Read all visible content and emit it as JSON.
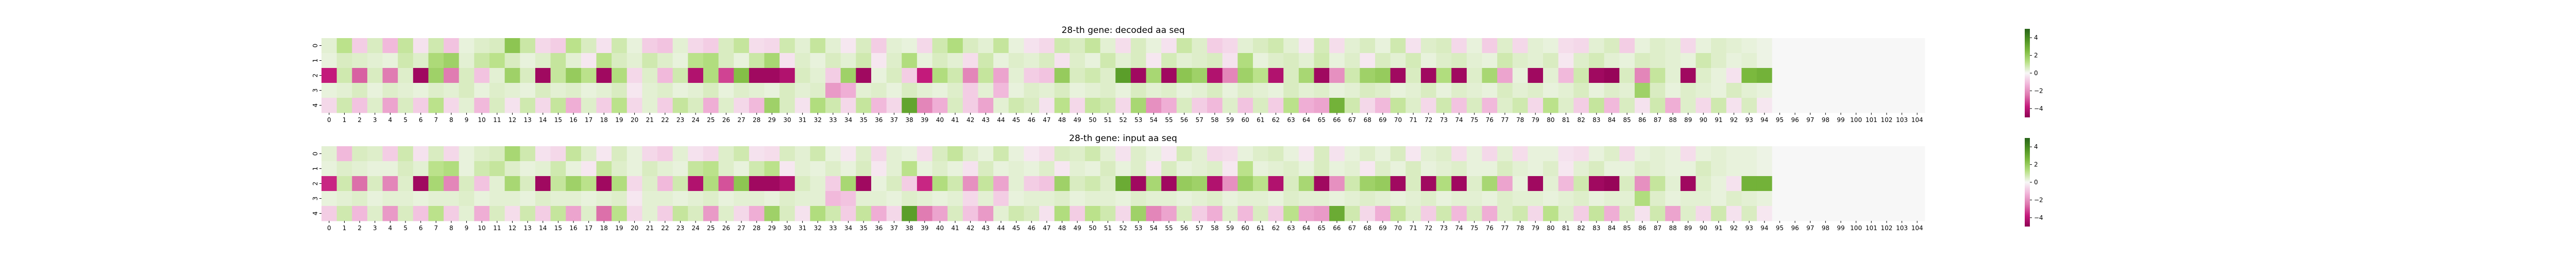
{
  "chart_data": [
    {
      "type": "heatmap",
      "title": "28-th gene: decoded aa seq",
      "xlabel": "",
      "ylabel": "",
      "x_categories": [
        "0",
        "1",
        "2",
        "3",
        "4",
        "5",
        "6",
        "7",
        "8",
        "9",
        "10",
        "11",
        "12",
        "13",
        "14",
        "15",
        "16",
        "17",
        "18",
        "19",
        "20",
        "21",
        "22",
        "23",
        "24",
        "25",
        "26",
        "27",
        "28",
        "29",
        "30",
        "31",
        "32",
        "33",
        "34",
        "35",
        "36",
        "37",
        "38",
        "39",
        "40",
        "41",
        "42",
        "43",
        "44",
        "45",
        "46",
        "47",
        "48",
        "49",
        "50",
        "51",
        "52",
        "53",
        "54",
        "55",
        "56",
        "57",
        "58",
        "59",
        "60",
        "61",
        "62",
        "63",
        "64",
        "65",
        "66",
        "67",
        "68",
        "69",
        "70",
        "71",
        "72",
        "73",
        "74",
        "75",
        "76",
        "77",
        "78",
        "79",
        "80",
        "81",
        "82",
        "83",
        "84",
        "85",
        "86",
        "87",
        "88",
        "89",
        "90",
        "91",
        "92",
        "93",
        "94",
        "95",
        "96",
        "97",
        "98",
        "99",
        "100",
        "101",
        "102",
        "103",
        "104"
      ],
      "y_categories": [
        "0",
        "1",
        "2",
        "3",
        "4"
      ],
      "colormap": "PiYG",
      "colorbar_ticks": [
        "4",
        "2",
        "0",
        "−2",
        "−4"
      ],
      "zlim": [
        -5,
        5
      ],
      "values": [
        [
          0.4,
          1.2,
          -0.8,
          0.6,
          -1.2,
          1.0,
          -0.4,
          0.8,
          -1.0,
          0.3,
          0.5,
          0.6,
          2.2,
          0.9,
          -0.6,
          -0.8,
          1.2,
          0.6,
          -0.4,
          0.8,
          0.3,
          -0.8,
          -1.0,
          0.4,
          -0.6,
          -0.8,
          0.6,
          1.0,
          -0.5,
          -0.6,
          0.8,
          0.4,
          1.0,
          0.4,
          -0.3,
          0.6,
          -0.8,
          0.4,
          0.3,
          -0.6,
          0.8,
          1.4,
          0.6,
          0.4,
          1.0,
          0.3,
          -0.4,
          -0.6,
          0.8,
          0.6,
          1.0,
          0.4,
          -0.5,
          0.6,
          0.3,
          -0.4,
          0.9,
          0.5,
          -0.8,
          -0.6,
          0.4,
          0.6,
          0.8,
          0.4,
          -0.3,
          0.7,
          -0.5,
          0.4,
          0.6,
          0.3,
          0.8,
          -0.4,
          0.5,
          0.6,
          -0.6,
          0.3,
          -0.8,
          0.5,
          -0.6,
          0.4,
          0.3,
          -0.5,
          -0.6,
          0.4,
          0.6,
          -0.8,
          0.3,
          0.5,
          0.4,
          -0.6,
          0.3,
          0.5,
          0.4,
          0.3,
          0.2,
          0,
          0,
          0,
          0,
          0,
          0,
          0,
          0,
          0,
          0
        ],
        [
          0.3,
          0.6,
          0.5,
          0.4,
          0.3,
          0.8,
          0.5,
          1.5,
          1.8,
          0.4,
          0.9,
          1.2,
          0.6,
          0.3,
          0.5,
          1.0,
          0.4,
          -0.3,
          1.2,
          0.6,
          0.4,
          0.8,
          0.5,
          0.3,
          1.2,
          1.4,
          0.6,
          0.3,
          0.9,
          1.6,
          -0.4,
          0.5,
          0.3,
          0.6,
          0.4,
          0.8,
          -0.3,
          0.5,
          1.4,
          0.3,
          0.6,
          0.4,
          -0.5,
          0.8,
          0.3,
          0.5,
          0.4,
          0.6,
          -0.4,
          0.5,
          0.3,
          0.8,
          0.4,
          0.6,
          -0.3,
          0.7,
          0.4,
          0.5,
          0.6,
          -0.4,
          1.4,
          0.3,
          0.5,
          0.6,
          0.4,
          0.8,
          0.3,
          0.5,
          -0.3,
          0.6,
          0.4,
          0.7,
          0.3,
          0.5,
          0.6,
          0.4,
          0.3,
          0.8,
          0.5,
          0.4,
          0.6,
          -0.3,
          0.5,
          0.7,
          0.4,
          0.3,
          0.6,
          0.5,
          0.4,
          0.3,
          0.8,
          0.5,
          0.3,
          0.4,
          0.2,
          0,
          0,
          0,
          0,
          0,
          0,
          0,
          0,
          0,
          0
        ],
        [
          -3.8,
          0.8,
          -2.8,
          0.6,
          -2.4,
          0.5,
          -4.6,
          1.8,
          -2.4,
          0.6,
          -1.0,
          0.4,
          1.8,
          0.6,
          -4.6,
          1.0,
          2.0,
          1.2,
          -4.6,
          1.4,
          -0.6,
          0.5,
          -1.2,
          0.8,
          -4.2,
          1.4,
          -3.2,
          2.4,
          -4.6,
          -4.6,
          -4.2,
          0.6,
          0.4,
          -0.8,
          1.8,
          -4.6,
          0.3,
          0.6,
          -0.8,
          -3.8,
          1.4,
          0.8,
          -2.2,
          1.0,
          -1.6,
          0.4,
          -0.8,
          -1.0,
          2.0,
          0.6,
          0.8,
          0.5,
          3.4,
          -4.6,
          1.6,
          -4.6,
          2.2,
          1.8,
          -4.2,
          -2.2,
          1.8,
          1.2,
          -4.2,
          0.6,
          1.6,
          -4.6,
          -2.0,
          0.8,
          1.8,
          2.0,
          -4.6,
          0.6,
          -4.6,
          1.4,
          -4.6,
          0.5,
          1.6,
          -1.6,
          0.3,
          -4.6,
          0.4,
          -1.2,
          0.8,
          -4.6,
          -4.8,
          0.6,
          -2.2,
          1.0,
          0.4,
          -4.6,
          0.5,
          0.3,
          -0.4,
          2.6,
          2.8,
          0,
          0,
          0,
          0,
          0,
          0,
          0,
          0,
          0,
          0
        ],
        [
          0.3,
          0.4,
          0.6,
          0.3,
          0.5,
          0.4,
          0.3,
          0.5,
          0.4,
          0.6,
          0.3,
          0.5,
          0.4,
          0.3,
          0.6,
          0.4,
          0.5,
          0.3,
          0.4,
          0.6,
          -0.3,
          0.4,
          0.5,
          0.3,
          0.4,
          0.6,
          0.3,
          0.5,
          0.4,
          0.3,
          0.6,
          0.4,
          0.5,
          -1.8,
          -1.4,
          0.4,
          0.5,
          0.3,
          0.6,
          0.4,
          0.3,
          0.5,
          -0.8,
          0.4,
          -1.2,
          0.3,
          0.5,
          0.4,
          0.6,
          0.3,
          0.4,
          0.5,
          0.3,
          0.6,
          0.4,
          0.5,
          0.3,
          0.4,
          0.6,
          0.3,
          0.5,
          0.4,
          0.3,
          0.6,
          0.4,
          0.5,
          0.3,
          0.4,
          0.6,
          0.5,
          0.3,
          0.4,
          0.6,
          0.3,
          0.5,
          0.4,
          0.3,
          0.6,
          0.4,
          0.5,
          0.3,
          0.4,
          0.6,
          0.3,
          0.5,
          0.4,
          1.8,
          0.6,
          0.3,
          0.5,
          0.4,
          0.3,
          0.6,
          0.4,
          0.3,
          0,
          0,
          0,
          0,
          0,
          0,
          0,
          0,
          0,
          0
        ],
        [
          -0.6,
          0.8,
          -1.0,
          0.5,
          -1.6,
          0.6,
          -0.8,
          1.2,
          -0.6,
          0.4,
          -1.2,
          0.6,
          -0.4,
          0.8,
          -0.6,
          1.0,
          -1.4,
          0.5,
          -0.8,
          1.2,
          -0.6,
          0.4,
          -0.8,
          1.0,
          0.6,
          -1.4,
          0.5,
          -0.6,
          -1.2,
          1.8,
          0.6,
          -0.4,
          1.4,
          0.8,
          -0.6,
          1.0,
          -1.2,
          -0.6,
          3.2,
          -2.2,
          -1.4,
          0.6,
          -0.8,
          -1.6,
          0.4,
          0.8,
          0.6,
          -0.4,
          1.2,
          -0.6,
          1.0,
          0.8,
          -0.6,
          1.6,
          -2.0,
          -1.4,
          0.6,
          -0.8,
          -1.2,
          0.5,
          -1.0,
          0.6,
          -0.8,
          1.2,
          -1.4,
          -1.6,
          2.8,
          0.8,
          -0.6,
          -1.2,
          1.0,
          0.5,
          -0.6,
          0.8,
          -1.0,
          0.6,
          -1.2,
          0.5,
          0.8,
          -0.6,
          1.2,
          0.5,
          -0.8,
          1.0,
          -1.2,
          0.6,
          -0.4,
          0.8,
          -1.4,
          0.5,
          -0.6,
          0.8,
          -0.4,
          0.6,
          -0.3,
          0,
          0,
          0,
          0,
          0,
          0,
          0,
          0,
          0,
          0
        ]
      ]
    },
    {
      "type": "heatmap",
      "title": "28-th gene: input aa seq",
      "xlabel": "",
      "ylabel": "",
      "x_categories": [
        "0",
        "1",
        "2",
        "3",
        "4",
        "5",
        "6",
        "7",
        "8",
        "9",
        "10",
        "11",
        "12",
        "13",
        "14",
        "15",
        "16",
        "17",
        "18",
        "19",
        "20",
        "21",
        "22",
        "23",
        "24",
        "25",
        "26",
        "27",
        "28",
        "29",
        "30",
        "31",
        "32",
        "33",
        "34",
        "35",
        "36",
        "37",
        "38",
        "39",
        "40",
        "41",
        "42",
        "43",
        "44",
        "45",
        "46",
        "47",
        "48",
        "49",
        "50",
        "51",
        "52",
        "53",
        "54",
        "55",
        "56",
        "57",
        "58",
        "59",
        "60",
        "61",
        "62",
        "63",
        "64",
        "65",
        "66",
        "67",
        "68",
        "69",
        "70",
        "71",
        "72",
        "73",
        "74",
        "75",
        "76",
        "77",
        "78",
        "79",
        "80",
        "81",
        "82",
        "83",
        "84",
        "85",
        "86",
        "87",
        "88",
        "89",
        "90",
        "91",
        "92",
        "93",
        "94",
        "95",
        "96",
        "97",
        "98",
        "99",
        "100",
        "101",
        "102",
        "103",
        "104"
      ],
      "y_categories": [
        "0",
        "1",
        "2",
        "3",
        "4"
      ],
      "colormap": "PiYG",
      "colorbar_ticks": [
        "4",
        "2",
        "0",
        "−2",
        "−4"
      ],
      "zlim": [
        -5,
        5
      ],
      "values": [
        [
          0.4,
          -1.2,
          0.6,
          0.5,
          -0.8,
          0.8,
          -0.4,
          0.6,
          -0.6,
          0.3,
          0.5,
          0.6,
          1.6,
          0.8,
          -0.4,
          -0.6,
          1.0,
          0.5,
          -0.3,
          0.6,
          0.3,
          -0.6,
          -0.8,
          0.4,
          -0.4,
          -0.6,
          0.5,
          0.8,
          -0.4,
          -0.5,
          0.6,
          0.4,
          0.8,
          0.3,
          -0.3,
          0.5,
          -0.6,
          0.4,
          0.3,
          -0.5,
          0.6,
          1.0,
          0.5,
          0.3,
          0.8,
          0.3,
          -0.3,
          -0.5,
          0.6,
          0.5,
          0.8,
          0.4,
          -0.4,
          0.5,
          0.3,
          -0.3,
          0.7,
          0.4,
          -0.6,
          -0.5,
          0.3,
          0.5,
          0.6,
          0.3,
          -0.3,
          0.6,
          -0.4,
          0.3,
          0.5,
          0.3,
          0.6,
          -0.3,
          0.4,
          0.5,
          -0.5,
          0.3,
          -0.6,
          0.4,
          -0.5,
          0.3,
          0.3,
          -0.4,
          -0.5,
          0.3,
          0.5,
          -0.6,
          0.3,
          0.4,
          0.3,
          -0.5,
          0.3,
          0.4,
          0.3,
          0.3,
          0.2,
          0,
          0,
          0,
          0,
          0,
          0,
          0,
          0,
          0,
          0
        ],
        [
          0.3,
          0.5,
          0.4,
          0.3,
          0.3,
          0.6,
          0.4,
          1.2,
          1.4,
          0.3,
          0.8,
          1.0,
          0.5,
          0.3,
          0.4,
          0.8,
          0.3,
          -0.3,
          1.0,
          0.5,
          0.3,
          0.6,
          0.4,
          0.3,
          1.0,
          1.2,
          0.5,
          0.3,
          0.8,
          1.2,
          -0.3,
          0.4,
          0.3,
          0.5,
          0.3,
          0.6,
          -0.3,
          0.4,
          1.2,
          0.3,
          0.5,
          0.3,
          -0.4,
          0.6,
          0.3,
          0.4,
          0.3,
          0.5,
          -0.3,
          0.4,
          0.3,
          0.6,
          0.3,
          0.5,
          -0.3,
          0.6,
          0.3,
          0.4,
          0.5,
          -0.3,
          1.2,
          0.3,
          0.4,
          0.5,
          0.3,
          0.6,
          0.3,
          0.4,
          -0.3,
          0.5,
          0.3,
          0.6,
          0.3,
          0.4,
          0.5,
          0.3,
          0.3,
          0.6,
          0.4,
          0.3,
          0.5,
          -0.3,
          0.4,
          0.6,
          0.3,
          0.3,
          0.5,
          0.4,
          0.3,
          0.3,
          0.6,
          0.4,
          0.3,
          0.3,
          0.2,
          0,
          0,
          0,
          0,
          0,
          0,
          0,
          0,
          0,
          0
        ],
        [
          -3.6,
          0.8,
          -2.6,
          0.6,
          -2.2,
          0.5,
          -4.6,
          1.6,
          -2.2,
          0.6,
          -1.0,
          0.4,
          1.6,
          0.6,
          -4.6,
          1.0,
          1.8,
          1.2,
          -4.6,
          1.4,
          -0.6,
          0.5,
          -1.2,
          0.8,
          -4.2,
          1.4,
          -3.0,
          2.2,
          -4.6,
          -4.6,
          -4.2,
          0.6,
          0.4,
          -0.8,
          1.6,
          -4.6,
          0.3,
          0.6,
          -0.8,
          -3.6,
          1.4,
          0.8,
          -2.0,
          1.0,
          -1.6,
          0.4,
          -0.8,
          -1.0,
          1.8,
          0.6,
          0.8,
          0.5,
          3.0,
          -4.6,
          1.6,
          -4.6,
          2.0,
          1.8,
          -4.2,
          -2.0,
          1.8,
          1.2,
          -4.2,
          0.6,
          1.6,
          -4.6,
          -2.0,
          0.8,
          1.8,
          2.0,
          -4.6,
          0.6,
          -4.6,
          1.4,
          -4.6,
          0.5,
          1.6,
          -1.6,
          0.3,
          -4.6,
          0.4,
          -1.2,
          0.8,
          -4.6,
          -4.8,
          0.6,
          -2.0,
          1.0,
          0.4,
          -4.6,
          0.5,
          0.3,
          -0.4,
          2.8,
          2.8,
          0,
          0,
          0,
          0,
          0,
          0,
          0,
          0,
          0,
          0
        ],
        [
          0.3,
          0.4,
          0.5,
          0.3,
          0.4,
          0.4,
          0.3,
          0.4,
          0.4,
          0.5,
          0.3,
          0.4,
          0.4,
          0.3,
          0.5,
          0.4,
          0.4,
          0.3,
          0.4,
          0.5,
          -0.3,
          0.4,
          0.4,
          0.3,
          0.4,
          0.5,
          0.3,
          0.4,
          0.4,
          0.3,
          0.5,
          0.4,
          0.4,
          -1.2,
          -1.0,
          0.4,
          0.4,
          0.3,
          0.5,
          0.4,
          0.3,
          0.4,
          -0.6,
          0.4,
          -0.8,
          0.3,
          0.4,
          0.4,
          0.5,
          0.3,
          0.4,
          0.4,
          0.3,
          0.5,
          0.4,
          0.4,
          0.3,
          0.4,
          0.5,
          0.3,
          0.4,
          0.4,
          0.3,
          0.5,
          0.4,
          0.4,
          0.3,
          0.4,
          0.5,
          0.4,
          0.3,
          0.4,
          0.5,
          0.3,
          0.4,
          0.4,
          0.3,
          0.5,
          0.4,
          0.4,
          0.3,
          0.4,
          0.5,
          0.3,
          0.4,
          0.4,
          1.4,
          0.5,
          0.3,
          0.4,
          0.4,
          0.3,
          0.5,
          0.4,
          0.3,
          0,
          0,
          0,
          0,
          0,
          0,
          0,
          0,
          0,
          0
        ],
        [
          -0.8,
          0.8,
          -1.2,
          0.5,
          -1.8,
          0.6,
          -1.0,
          1.2,
          -0.8,
          0.4,
          -1.4,
          0.6,
          -0.5,
          0.8,
          -0.8,
          1.0,
          -1.6,
          0.5,
          -2.6,
          1.2,
          -0.6,
          0.4,
          -0.8,
          1.0,
          0.6,
          -1.8,
          0.5,
          -0.6,
          -1.4,
          1.8,
          0.6,
          -0.4,
          1.4,
          0.8,
          -0.8,
          1.0,
          -1.4,
          -0.6,
          3.4,
          -2.4,
          -1.6,
          0.6,
          -1.0,
          -1.8,
          0.4,
          0.8,
          0.6,
          -0.4,
          1.4,
          -0.8,
          1.2,
          0.8,
          -0.6,
          1.8,
          -2.2,
          -1.6,
          0.6,
          -0.8,
          -1.4,
          0.5,
          -1.2,
          0.6,
          -0.8,
          1.2,
          -1.6,
          -1.8,
          3.0,
          0.8,
          -0.6,
          -1.4,
          1.0,
          0.5,
          -0.8,
          0.8,
          -1.2,
          0.6,
          -1.4,
          0.5,
          0.8,
          -0.6,
          1.2,
          0.5,
          -0.8,
          1.0,
          -1.4,
          0.6,
          -0.4,
          0.8,
          -1.6,
          0.5,
          -0.6,
          0.8,
          -0.4,
          0.6,
          -0.3,
          0,
          0,
          0,
          0,
          0,
          0,
          0,
          0,
          0,
          0
        ]
      ]
    }
  ]
}
